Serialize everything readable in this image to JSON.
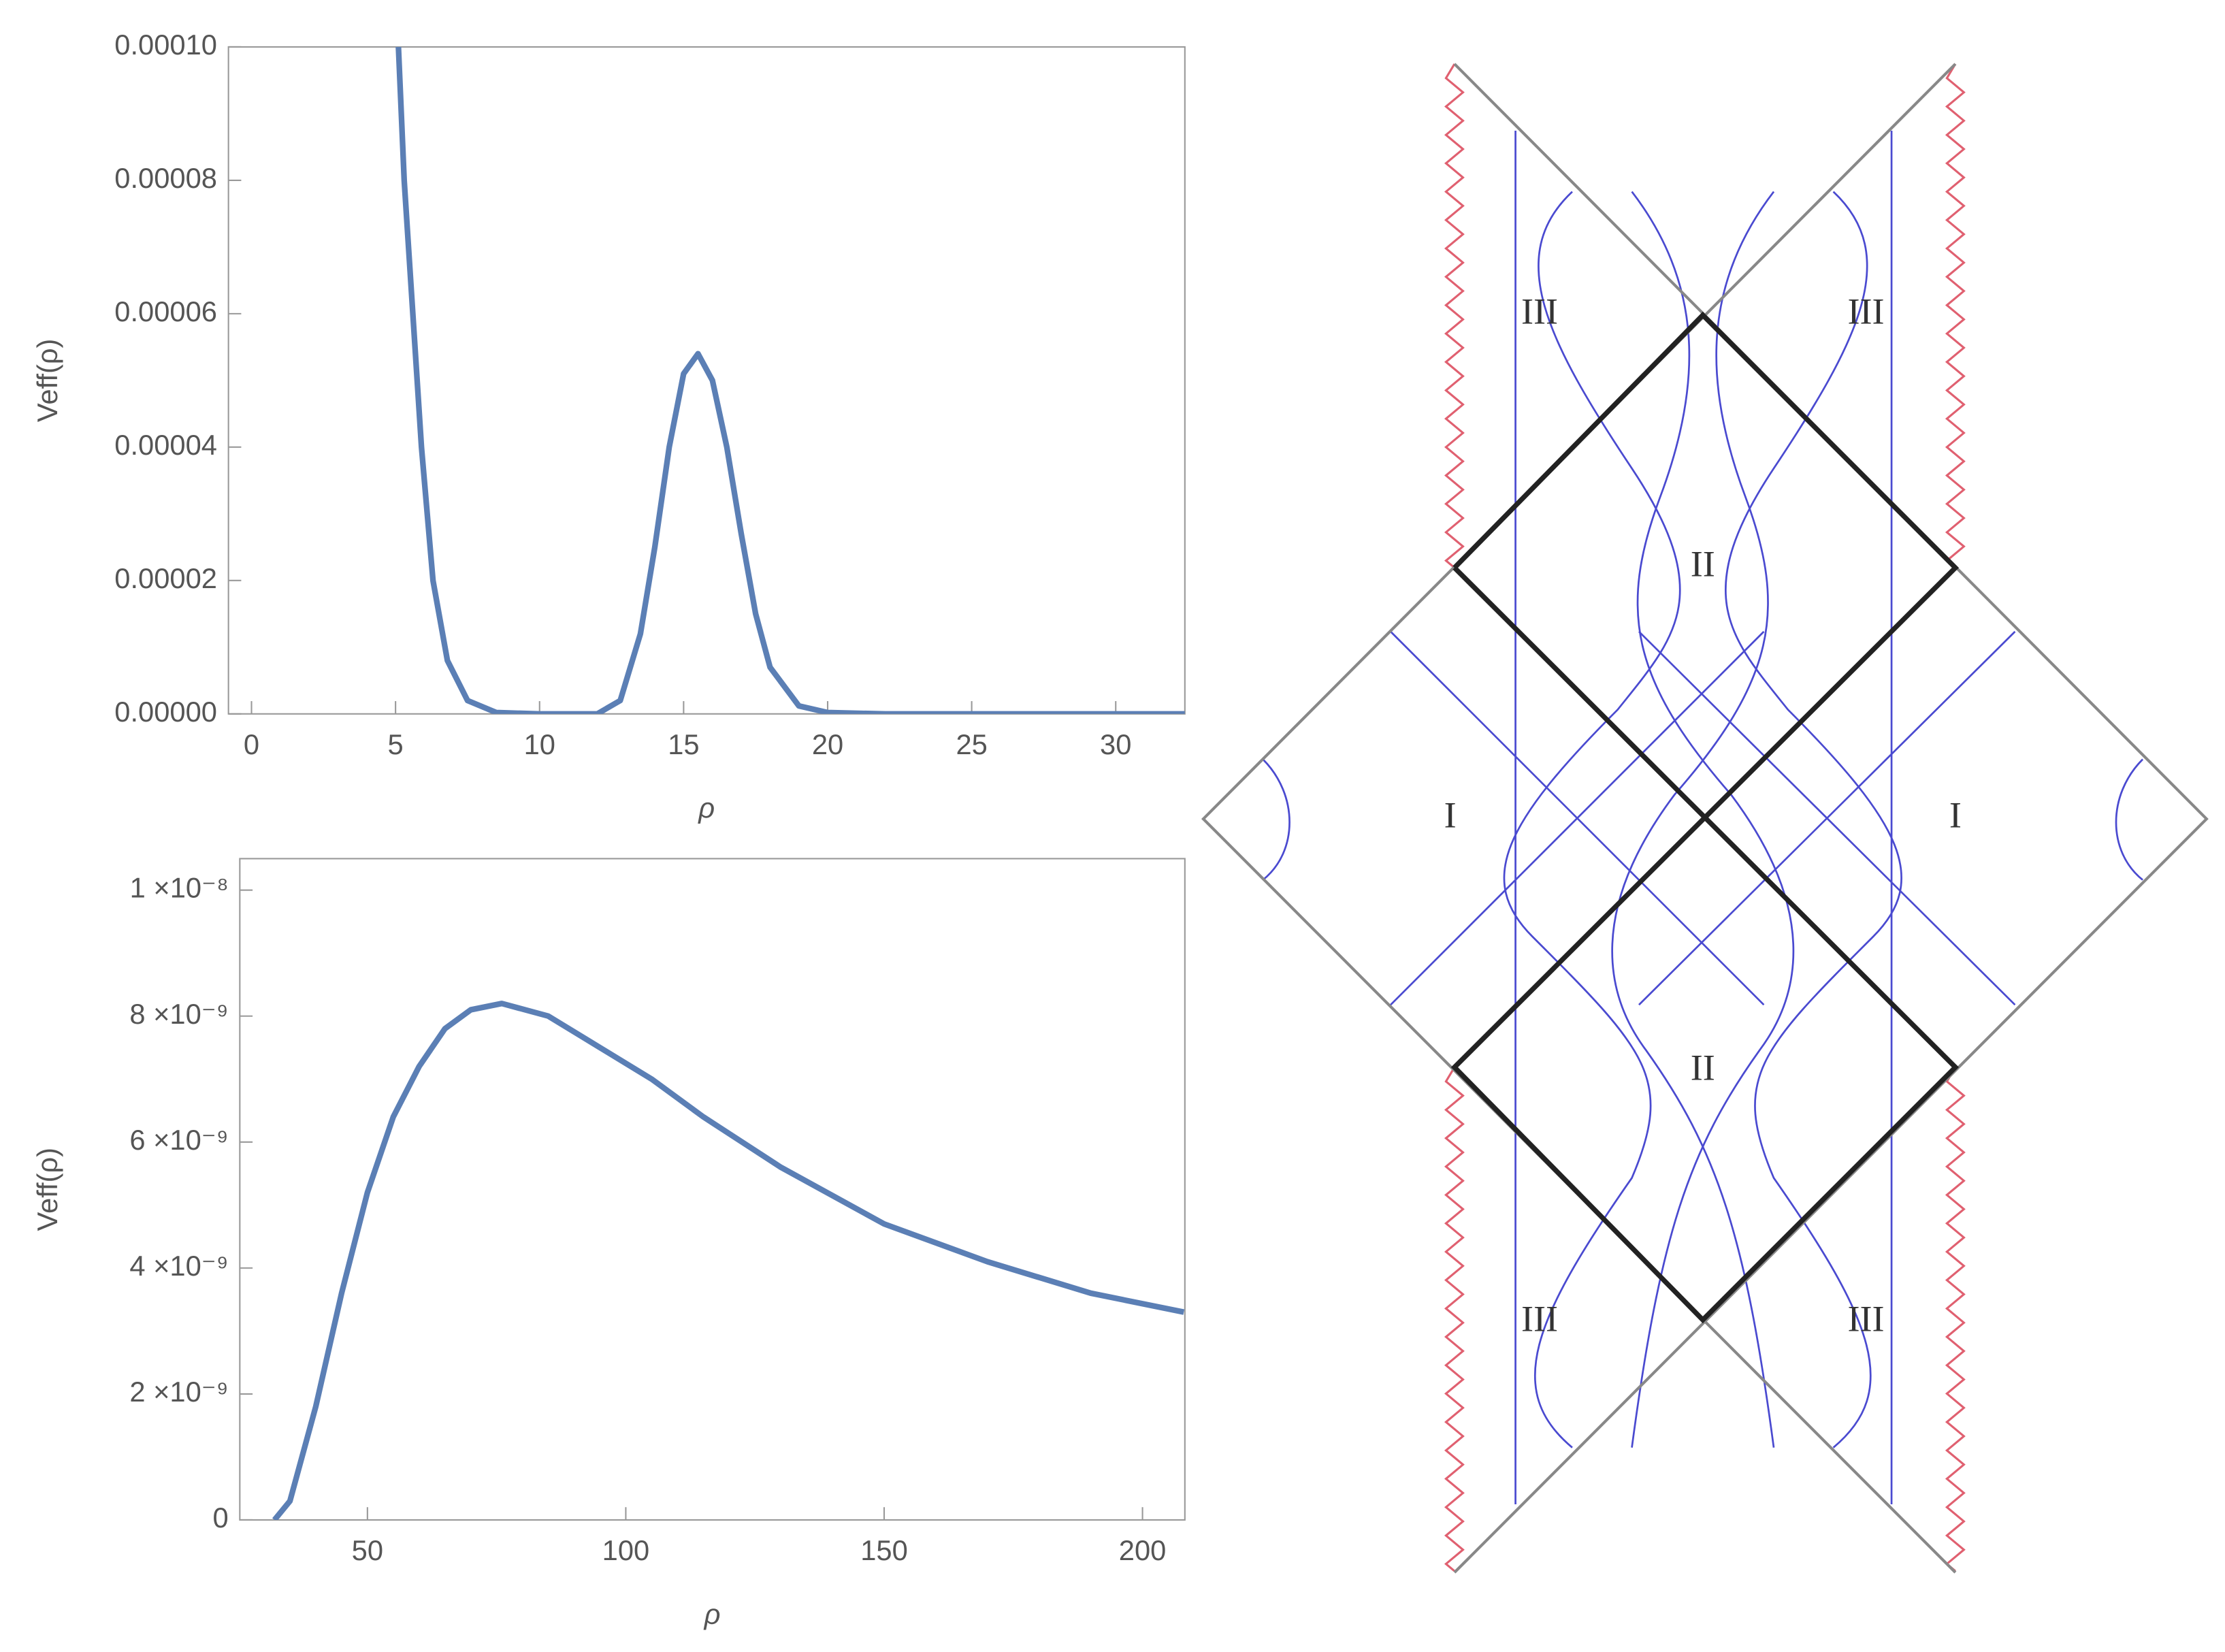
{
  "chart_data": [
    {
      "type": "line",
      "xlabel": "ρ",
      "ylabel": "Veff(ρ)",
      "color": "#5b7fb5",
      "x": [
        5.1,
        5.3,
        5.6,
        5.9,
        6.3,
        6.8,
        7.5,
        8.5,
        10,
        12,
        12.8,
        13.5,
        14,
        14.5,
        15,
        15.5,
        16,
        16.5,
        17,
        17.5,
        18,
        19,
        20,
        22,
        25,
        30,
        32.4
      ],
      "values": [
        0.0001,
        8e-05,
        6e-05,
        4e-05,
        2e-05,
        8e-06,
        2e-06,
        2e-07,
        0,
        0,
        2e-06,
        1.2e-05,
        2.5e-05,
        4e-05,
        5.1e-05,
        5.4e-05,
        5e-05,
        4e-05,
        2.7e-05,
        1.5e-05,
        7e-06,
        1.2e-06,
        2e-07,
        0,
        0,
        0,
        0
      ],
      "xlim": [
        -0.8,
        32.4
      ],
      "xticks": [
        0,
        5,
        10,
        15,
        20,
        25,
        30
      ],
      "ylim": [
        0,
        0.0001
      ],
      "yticks": [
        {
          "value": 0,
          "label": "0.00000"
        },
        {
          "value": 2e-05,
          "label": "0.00002"
        },
        {
          "value": 4e-05,
          "label": "0.00004"
        },
        {
          "value": 6e-05,
          "label": "0.00006"
        },
        {
          "value": 8e-05,
          "label": "0.00008"
        },
        {
          "value": 0.0001,
          "label": "0.00010"
        }
      ]
    },
    {
      "type": "line",
      "xlabel": "ρ",
      "ylabel": "Veff(ρ)",
      "color": "#5b7fb5",
      "x": [
        32,
        35,
        40,
        45,
        50,
        55,
        60,
        65,
        70,
        76,
        85,
        95,
        105,
        115,
        130,
        150,
        170,
        190,
        208
      ],
      "values": [
        0,
        3e-10,
        1.8e-09,
        3.6e-09,
        5.2e-09,
        6.4e-09,
        7.2e-09,
        7.8e-09,
        8.1e-09,
        8.2e-09,
        8e-09,
        7.5e-09,
        7e-09,
        6.4e-09,
        5.6e-09,
        4.7e-09,
        4.1e-09,
        3.6e-09,
        3.3e-09
      ],
      "xlim": [
        25.3,
        208.2
      ],
      "xticks": [
        50,
        100,
        150,
        200
      ],
      "ylim": [
        0,
        1.05e-08
      ],
      "yticks": [
        0,
        {
          "value": 2e-09,
          "label": "2 ×10⁻⁹"
        },
        {
          "value": 4e-09,
          "label": "4 ×10⁻⁹"
        },
        {
          "value": 6e-09,
          "label": "6 ×10⁻⁹"
        },
        {
          "value": 8e-09,
          "label": "8 ×10⁻⁹"
        },
        {
          "value": 1e-08,
          "label": "1 ×10⁻⁸"
        }
      ]
    }
  ],
  "diagram": {
    "labels": [
      "III",
      "III",
      "II",
      "I",
      "I",
      "II",
      "III",
      "III"
    ]
  }
}
